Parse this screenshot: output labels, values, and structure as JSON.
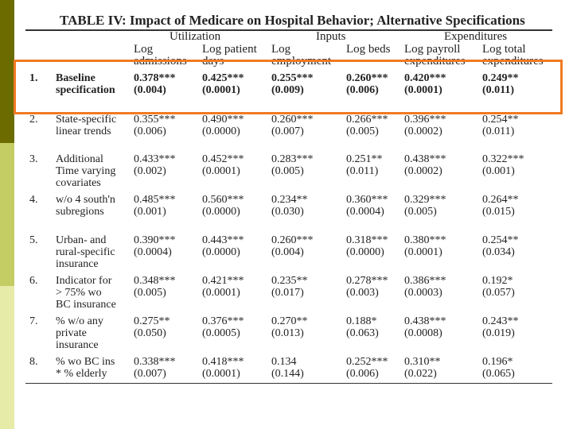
{
  "title": "TABLE IV: Impact of Medicare on Hospital Behavior; Alternative Specifications",
  "groups": [
    "Utilization",
    "Inputs",
    "Expenditures"
  ],
  "columns": [
    [
      "Log",
      "admissions"
    ],
    [
      "Log patient",
      "days"
    ],
    [
      "Log",
      "employment"
    ],
    [
      "Log beds",
      ""
    ],
    [
      "Log payroll",
      "expenditures"
    ],
    [
      "Log total",
      "expenditures"
    ]
  ],
  "rows": [
    {
      "num": "1.",
      "label": [
        "Baseline",
        "specification"
      ],
      "coef": [
        "0.378***",
        "0.425***",
        "0.255***",
        "0.260***",
        "0.420***",
        "0.249**"
      ],
      "se": [
        "(0.004)",
        "(0.0001)",
        "(0.009)",
        "(0.006)",
        "(0.0001)",
        "(0.011)"
      ]
    },
    {
      "num": "2.",
      "label": [
        "State-specific",
        "linear trends"
      ],
      "coef": [
        "0.355***",
        "0.490***",
        "0.260***",
        "0.266***",
        "0.396***",
        "0.254**"
      ],
      "se": [
        "(0.006)",
        "(0.0000)",
        "(0.007)",
        "(0.005)",
        "(0.0002)",
        "(0.011)"
      ]
    },
    {
      "num": "3.",
      "label": [
        "Additional",
        "Time varying",
        "covariates"
      ],
      "coef": [
        "0.433***",
        "0.452***",
        "0.283***",
        "0.251**",
        "0.438***",
        "0.322***"
      ],
      "se": [
        "(0.002)",
        "(0.0001)",
        "(0.005)",
        "(0.011)",
        "(0.0002)",
        "(0.001)"
      ]
    },
    {
      "num": "4.",
      "label": [
        "w/o 4 south'n",
        "subregions"
      ],
      "coef": [
        "0.485***",
        "0.560***",
        "0.234**",
        "0.360***",
        "0.329***",
        "0.264**"
      ],
      "se": [
        "(0.001)",
        "(0.0000)",
        "(0.030)",
        "(0.0004)",
        "(0.005)",
        "(0.015)"
      ]
    },
    {
      "num": "5.",
      "label": [
        "Urban- and",
        "rural-specific",
        "insurance"
      ],
      "coef": [
        "0.390***",
        "0.443***",
        "0.260***",
        "0.318***",
        "0.380***",
        "0.254**"
      ],
      "se": [
        "(0.0004)",
        "(0.0000)",
        "(0.004)",
        "(0.0000)",
        "(0.0001)",
        "(0.034)"
      ]
    },
    {
      "num": "6.",
      "label": [
        "Indicator for",
        ">   75% wo",
        "BC insurance"
      ],
      "coef": [
        "0.348***",
        "0.421***",
        "0.235**",
        "0.278***",
        "0.386***",
        "0.192*"
      ],
      "se": [
        "(0.005)",
        "(0.0001)",
        "(0.017)",
        "(0.003)",
        "(0.0003)",
        "(0.057)"
      ]
    },
    {
      "num": "7.",
      "label": [
        "% w/o any",
        "private",
        "insurance"
      ],
      "coef": [
        "0.275**",
        "0.376***",
        "0.270**",
        "0.188*",
        "0.438***",
        "0.243**"
      ],
      "se": [
        "(0.050)",
        "(0.0005)",
        "(0.013)",
        "(0.063)",
        "(0.0008)",
        "(0.019)"
      ]
    },
    {
      "num": "8.",
      "label": [
        "% wo BC  ins",
        "* % elderly"
      ],
      "coef": [
        "0.338***",
        "0.418***",
        "0.134",
        "0.252***",
        "0.310**",
        "0.196*"
      ],
      "se": [
        "(0.007)",
        "(0.0001)",
        "(0.144)",
        "(0.006)",
        "(0.022)",
        "(0.065)"
      ]
    }
  ],
  "highlight_color": "#f07a22"
}
